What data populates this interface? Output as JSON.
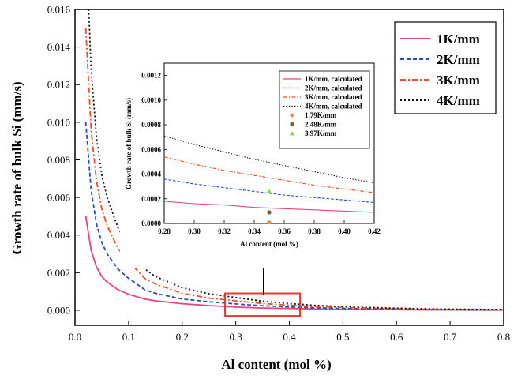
{
  "chart_data": [
    {
      "type": "line",
      "panel": "main",
      "title": "",
      "xlabel": "Al content (mol %)",
      "ylabel": "Growth rate of  bulk Si (mm/s)",
      "xlim": [
        0.0,
        0.8
      ],
      "ylim": [
        -0.0008,
        0.016
      ],
      "xticks": [
        "0.0",
        "0.1",
        "0.2",
        "0.3",
        "0.4",
        "0.5",
        "0.6",
        "0.7",
        "0.8"
      ],
      "yticks": [
        "0.000",
        "0.002",
        "0.004",
        "0.006",
        "0.008",
        "0.010",
        "0.012",
        "0.014",
        "0.016"
      ],
      "grid": false,
      "legend_position": "top-right",
      "x": [
        0.02,
        0.03,
        0.04,
        0.05,
        0.06,
        0.08,
        0.1,
        0.13,
        0.15,
        0.2,
        0.25,
        0.3,
        0.35,
        0.4,
        0.45,
        0.5,
        0.55,
        0.6,
        0.65,
        0.7,
        0.75,
        0.8
      ],
      "series": [
        {
          "name": "1K/mm",
          "color": "#e8457c",
          "dash": "solid",
          "values": [
            0.005,
            0.0032,
            0.0023,
            0.0018,
            0.0015,
            0.0011,
            0.00085,
            0.0006,
            0.0005,
            0.00035,
            0.00025,
            0.00017,
            0.00012,
            0.0001,
            7e-05,
            5e-05,
            4e-05,
            3e-05,
            2e-05,
            2e-05,
            1e-05,
            1e-05
          ]
        },
        {
          "name": "2K/mm",
          "color": "#2a4fb8",
          "dash": "dashed",
          "values": [
            0.01,
            0.0064,
            0.0046,
            0.0036,
            0.003,
            0.0022,
            0.0017,
            0.0011,
            0.0009,
            0.0006,
            0.00045,
            0.00034,
            0.00024,
            0.00018,
            0.00013,
            0.0001,
            8e-05,
            6e-05,
            4e-05,
            3e-05,
            2e-05,
            2e-05
          ]
        },
        {
          "name": "3K/mm",
          "color": "#e8502a",
          "dash": "dashdot",
          "values": [
            0.015,
            0.0096,
            0.0069,
            0.0054,
            0.0045,
            0.0033,
            0.0026,
            0.0017,
            0.0014,
            0.0009,
            0.00065,
            0.0005,
            0.00036,
            0.00027,
            0.0002,
            0.00015,
            0.00011,
            8e-05,
            6e-05,
            5e-05,
            4e-05,
            3e-05
          ]
        },
        {
          "name": "4K/mm",
          "color": "#111111",
          "dash": "dotted",
          "values": [
            0.02,
            0.0128,
            0.0092,
            0.0072,
            0.006,
            0.0044,
            0.0034,
            0.0022,
            0.0018,
            0.0012,
            0.00088,
            0.00068,
            0.00048,
            0.00036,
            0.00026,
            0.0002,
            0.00015,
            0.00011,
            8e-05,
            6e-05,
            5e-05,
            4e-05
          ]
        }
      ],
      "highlight_box": {
        "x": [
          0.28,
          0.42
        ],
        "y": [
          -0.0003,
          0.0009
        ],
        "color": "#e53a2a"
      }
    },
    {
      "type": "line",
      "panel": "inset",
      "title": "",
      "xlabel": "Al content (mol %)",
      "ylabel": "Growth rate of bulk Si (mm/s)",
      "xlim": [
        0.28,
        0.42
      ],
      "ylim": [
        0.0,
        0.0013
      ],
      "xticks": [
        "0.28",
        "0.30",
        "0.32",
        "0.34",
        "0.36",
        "0.38",
        "0.40",
        "0.42"
      ],
      "yticks": [
        "0.0000",
        "0.0002",
        "0.0004",
        "0.0006",
        "0.0008",
        "0.0010",
        "0.0012"
      ],
      "grid": false,
      "legend_position": "top-right",
      "x": [
        0.28,
        0.3,
        0.32,
        0.34,
        0.36,
        0.38,
        0.4,
        0.42
      ],
      "series": [
        {
          "name": "1K/mm, calculated",
          "color": "#e8457c",
          "dash": "solid",
          "values": [
            0.00018,
            0.00016,
            0.00015,
            0.00013,
            0.00012,
            0.00011,
            0.0001,
            9e-05
          ]
        },
        {
          "name": "2K/mm, calculated",
          "color": "#2a4fb8",
          "dash": "dashed",
          "values": [
            0.00036,
            0.00032,
            0.00029,
            0.00026,
            0.00023,
            0.00021,
            0.00019,
            0.00017
          ]
        },
        {
          "name": "3K/mm, calculated",
          "color": "#e8502a",
          "dash": "dashdot",
          "values": [
            0.00054,
            0.00048,
            0.00043,
            0.00039,
            0.00035,
            0.00031,
            0.00028,
            0.00025
          ]
        },
        {
          "name": "4K/mm, calculated",
          "color": "#111111",
          "dash": "dotted",
          "values": [
            0.00071,
            0.00064,
            0.00058,
            0.00052,
            0.00047,
            0.00042,
            0.00037,
            0.00033
          ]
        }
      ],
      "points": [
        {
          "name": "1.79K/mm",
          "marker": "diamond",
          "color": "#f08a3c",
          "x": 0.35,
          "y": 1e-05
        },
        {
          "name": "2.48K/mm",
          "marker": "circle",
          "color": "#6b6b2a",
          "x": 0.35,
          "y": 9e-05
        },
        {
          "name": "3.97K/mm",
          "marker": "triangle",
          "color": "#8fd14f",
          "x": 0.35,
          "y": 0.00026
        }
      ]
    }
  ]
}
